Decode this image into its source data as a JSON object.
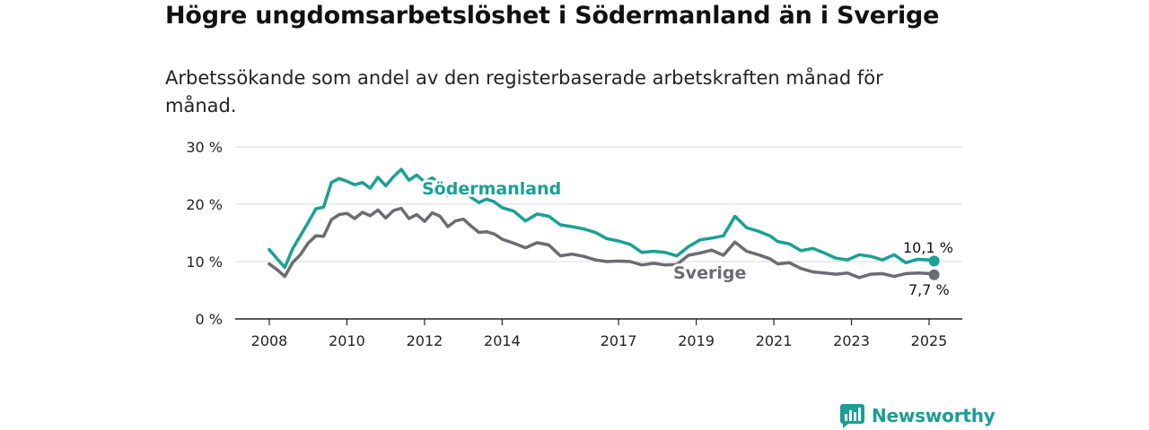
{
  "title": "Högre ungdomsarbetslöshet i Södermanland än i Sverige",
  "subtitle": "Arbetssökande som andel av den registerbaserade arbetskraften månad för månad.",
  "brand": {
    "name": "Newsworthy",
    "color": "#1b9e95"
  },
  "chart_data": {
    "type": "line",
    "ylim": [
      0,
      30
    ],
    "xlim": [
      2007.9,
      2026.0
    ],
    "y_ticks": [
      {
        "value": 0,
        "label": "0 %"
      },
      {
        "value": 10,
        "label": "10 %"
      },
      {
        "value": 20,
        "label": "20 %"
      },
      {
        "value": 30,
        "label": "30 %"
      }
    ],
    "x_ticks": [
      {
        "value": 2008,
        "label": "2008"
      },
      {
        "value": 2010,
        "label": "2010"
      },
      {
        "value": 2012,
        "label": "2012"
      },
      {
        "value": 2014,
        "label": "2014"
      },
      {
        "value": 2017,
        "label": "2017"
      },
      {
        "value": 2019,
        "label": "2019"
      },
      {
        "value": 2021,
        "label": "2021"
      },
      {
        "value": 2023,
        "label": "2023"
      },
      {
        "value": 2025,
        "label": "2025"
      }
    ],
    "grid": true,
    "series": [
      {
        "name": "Södermanland",
        "color": "#1aa095",
        "end_label": "10,1 %",
        "x": [
          2008.0,
          2008.2,
          2008.4,
          2008.6,
          2008.8,
          2009.0,
          2009.2,
          2009.4,
          2009.6,
          2009.8,
          2010.0,
          2010.2,
          2010.4,
          2010.6,
          2010.8,
          2011.0,
          2011.2,
          2011.4,
          2011.6,
          2011.8,
          2012.0,
          2012.2,
          2012.4,
          2012.6,
          2012.8,
          2013.0,
          2013.2,
          2013.4,
          2013.6,
          2013.8,
          2014.0,
          2014.3,
          2014.6,
          2014.9,
          2015.2,
          2015.5,
          2015.8,
          2016.1,
          2016.4,
          2016.7,
          2017.0,
          2017.3,
          2017.6,
          2017.9,
          2018.2,
          2018.5,
          2018.8,
          2019.1,
          2019.4,
          2019.7,
          2020.0,
          2020.3,
          2020.6,
          2020.9,
          2021.1,
          2021.4,
          2021.7,
          2022.0,
          2022.3,
          2022.6,
          2022.9,
          2023.2,
          2023.5,
          2023.8,
          2024.1,
          2024.4,
          2024.7,
          2025.0,
          2025.13
        ],
        "y": [
          12.1,
          10.5,
          9.0,
          12.2,
          14.5,
          16.8,
          19.2,
          19.5,
          23.8,
          24.5,
          24.0,
          23.4,
          23.8,
          22.8,
          24.7,
          23.2,
          24.8,
          26.1,
          24.2,
          25.1,
          23.9,
          24.6,
          23.6,
          21.5,
          22.7,
          23.1,
          21.2,
          20.3,
          20.9,
          20.4,
          19.4,
          18.8,
          17.1,
          18.3,
          17.9,
          16.4,
          16.1,
          15.7,
          15.1,
          14.0,
          13.6,
          13.0,
          11.6,
          11.8,
          11.6,
          11.0,
          12.6,
          13.8,
          14.1,
          14.5,
          17.9,
          15.9,
          15.3,
          14.5,
          13.5,
          13.1,
          11.9,
          12.3,
          11.5,
          10.6,
          10.3,
          11.2,
          10.9,
          10.3,
          11.2,
          9.8,
          10.4,
          10.3,
          10.1
        ]
      },
      {
        "name": "Sverige",
        "color": "#6b6b72",
        "end_label": "7,7 %",
        "x": [
          2008.0,
          2008.2,
          2008.4,
          2008.6,
          2008.8,
          2009.0,
          2009.2,
          2009.4,
          2009.6,
          2009.8,
          2010.0,
          2010.2,
          2010.4,
          2010.6,
          2010.8,
          2011.0,
          2011.2,
          2011.4,
          2011.6,
          2011.8,
          2012.0,
          2012.2,
          2012.4,
          2012.6,
          2012.8,
          2013.0,
          2013.2,
          2013.4,
          2013.6,
          2013.8,
          2014.0,
          2014.3,
          2014.6,
          2014.9,
          2015.2,
          2015.5,
          2015.8,
          2016.1,
          2016.4,
          2016.7,
          2017.0,
          2017.3,
          2017.6,
          2017.9,
          2018.2,
          2018.5,
          2018.8,
          2019.1,
          2019.4,
          2019.7,
          2020.0,
          2020.3,
          2020.6,
          2020.9,
          2021.1,
          2021.4,
          2021.7,
          2022.0,
          2022.3,
          2022.6,
          2022.9,
          2023.2,
          2023.5,
          2023.8,
          2024.1,
          2024.4,
          2024.7,
          2025.0,
          2025.13
        ],
        "y": [
          9.6,
          8.6,
          7.4,
          9.8,
          11.2,
          13.2,
          14.5,
          14.4,
          17.3,
          18.2,
          18.4,
          17.5,
          18.6,
          18.0,
          19.0,
          17.6,
          18.9,
          19.3,
          17.5,
          18.2,
          17.0,
          18.5,
          17.9,
          16.1,
          17.1,
          17.4,
          16.2,
          15.1,
          15.2,
          14.8,
          13.9,
          13.2,
          12.4,
          13.3,
          12.9,
          11.0,
          11.3,
          10.9,
          10.3,
          10.0,
          10.1,
          10.0,
          9.4,
          9.7,
          9.4,
          9.5,
          11.1,
          11.5,
          12.0,
          11.1,
          13.4,
          11.8,
          11.2,
          10.5,
          9.6,
          9.8,
          8.8,
          8.2,
          8.0,
          7.8,
          8.0,
          7.2,
          7.8,
          7.9,
          7.4,
          7.9,
          8.0,
          7.9,
          7.7
        ]
      }
    ]
  }
}
